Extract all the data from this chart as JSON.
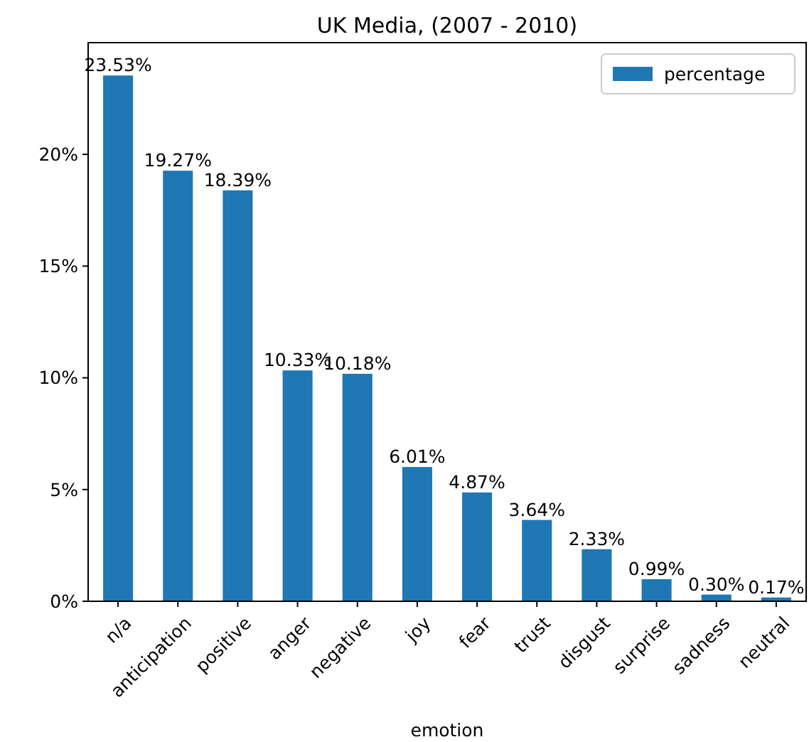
{
  "chart_data": {
    "type": "bar",
    "title": "UK Media, (2007 - 2010)",
    "xlabel": "emotion",
    "categories": [
      "n/a",
      "anticipation",
      "positive",
      "anger",
      "negative",
      "joy",
      "fear",
      "trust",
      "disgust",
      "surprise",
      "sadness",
      "neutral"
    ],
    "series": [
      {
        "name": "percentage",
        "color": "#1f77b4",
        "values": [
          23.53,
          19.27,
          18.39,
          10.33,
          10.18,
          6.01,
          4.87,
          3.64,
          2.33,
          0.99,
          0.3,
          0.17
        ],
        "value_labels": [
          "23.53%",
          "19.27%",
          "18.39%",
          "10.33%",
          "10.18%",
          "6.01%",
          "4.87%",
          "3.64%",
          "2.33%",
          "0.99%",
          "0.30%",
          "0.17%"
        ]
      }
    ],
    "ylim": [
      0,
      25
    ],
    "yticks": [
      {
        "value": 0,
        "label": "0%"
      },
      {
        "value": 5,
        "label": "5%"
      },
      {
        "value": 10,
        "label": "10%"
      },
      {
        "value": 15,
        "label": "15%"
      },
      {
        "value": 20,
        "label": "20%"
      }
    ],
    "grid": false,
    "legend": "top right"
  }
}
